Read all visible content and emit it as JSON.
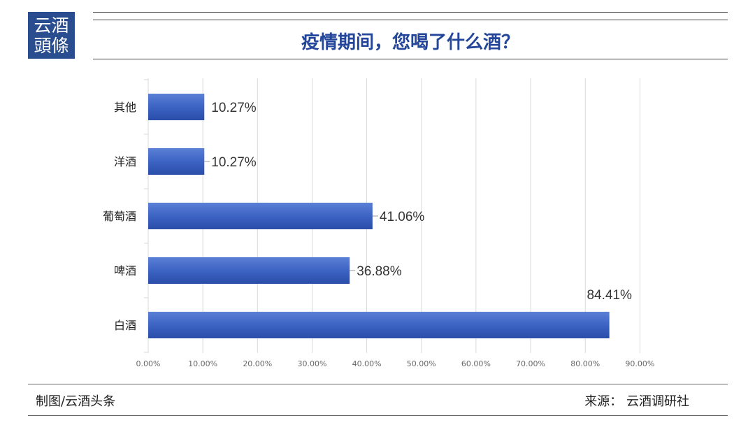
{
  "logo": {
    "line1": "云酒",
    "line2": "頭條"
  },
  "header": {
    "title": "疫情期间，您喝了什么酒？"
  },
  "footer": {
    "left": "制图/云酒头条",
    "right": "来源：  云酒调研社"
  },
  "colors": {
    "bar": "#3d63c4",
    "barDark": "#2a4da8",
    "title": "#23469a",
    "logo": "#2a4d8f"
  },
  "chart_data": {
    "type": "bar",
    "orientation": "horizontal",
    "title": "疫情期间，您喝了什么酒？",
    "categories": [
      "其他",
      "洋酒",
      "葡萄酒",
      "啤酒",
      "白酒"
    ],
    "values": [
      10.27,
      10.27,
      41.06,
      36.88,
      84.41
    ],
    "value_labels": [
      "10.27%",
      "10.27%",
      "41.06%",
      "36.88%",
      "84.41%"
    ],
    "x_ticks": [
      "0.00%",
      "10.00%",
      "20.00%",
      "30.00%",
      "40.00%",
      "50.00%",
      "60.00%",
      "70.00%",
      "80.00%",
      "90.00%"
    ],
    "xlim": [
      0,
      90
    ],
    "grid": true,
    "xlabel": "",
    "ylabel": ""
  }
}
